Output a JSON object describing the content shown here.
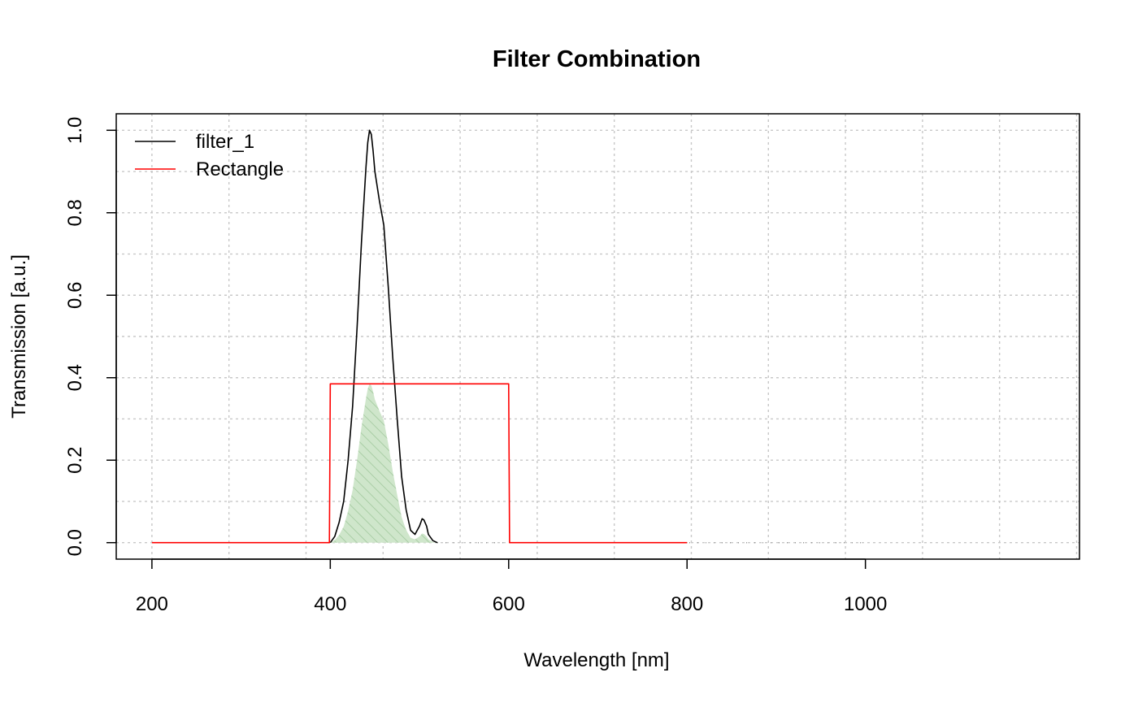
{
  "chart_data": {
    "type": "line",
    "title": "Filter Combination",
    "xlabel": "Wavelength [nm]",
    "ylabel": "Transmission [a.u.]",
    "xlim": [
      160,
      1240
    ],
    "ylim": [
      -0.04,
      1.04
    ],
    "x_ticks": [
      200,
      400,
      600,
      800,
      1000
    ],
    "x_tick_labels": [
      "200",
      "400",
      "600",
      "800",
      "1000"
    ],
    "y_ticks": [
      0,
      0.2,
      0.4,
      0.6,
      0.8,
      1.0
    ],
    "y_tick_labels": [
      "0.0",
      "0.2",
      "0.4",
      "0.6",
      "0.8",
      "1.0"
    ],
    "grid": true,
    "legend_position": "top-left",
    "series": [
      {
        "name": "filter_1",
        "color": "#000000",
        "style": "solid",
        "x": [
          400,
          405,
          410,
          415,
          420,
          425,
          430,
          435,
          440,
          442,
          444,
          446,
          448,
          450,
          455,
          460,
          465,
          470,
          475,
          480,
          485,
          490,
          495,
          500,
          503,
          505,
          508,
          510,
          515,
          520
        ],
        "y": [
          0,
          0.015,
          0.05,
          0.1,
          0.2,
          0.33,
          0.52,
          0.73,
          0.91,
          0.97,
          1.0,
          0.99,
          0.95,
          0.9,
          0.83,
          0.77,
          0.62,
          0.45,
          0.3,
          0.16,
          0.08,
          0.03,
          0.02,
          0.04,
          0.058,
          0.055,
          0.04,
          0.02,
          0.005,
          0.0
        ]
      },
      {
        "name": "Rectangle",
        "color": "#ff0000",
        "style": "solid",
        "x": [
          200,
          399,
          400,
          600,
          601,
          800
        ],
        "y": [
          0,
          0,
          0.385,
          0.385,
          0,
          0
        ]
      }
    ],
    "shaded_area": {
      "color": "#cfe6cb",
      "hatch_color": "#9ec79a",
      "x": [
        400,
        405,
        410,
        415,
        420,
        425,
        430,
        435,
        440,
        442,
        444,
        446,
        448,
        450,
        455,
        460,
        465,
        470,
        475,
        480,
        485,
        490,
        495,
        500,
        503,
        505,
        508,
        510,
        515,
        520
      ],
      "y": [
        0,
        0.006,
        0.019,
        0.039,
        0.077,
        0.127,
        0.2,
        0.281,
        0.35,
        0.373,
        0.385,
        0.381,
        0.366,
        0.347,
        0.32,
        0.296,
        0.239,
        0.173,
        0.116,
        0.062,
        0.031,
        0.012,
        0.008,
        0.015,
        0.022,
        0.021,
        0.015,
        0.008,
        0.002,
        0.0
      ]
    },
    "dotted_zero_line": {
      "color": "#999999",
      "x": [
        520,
        1000
      ]
    }
  }
}
